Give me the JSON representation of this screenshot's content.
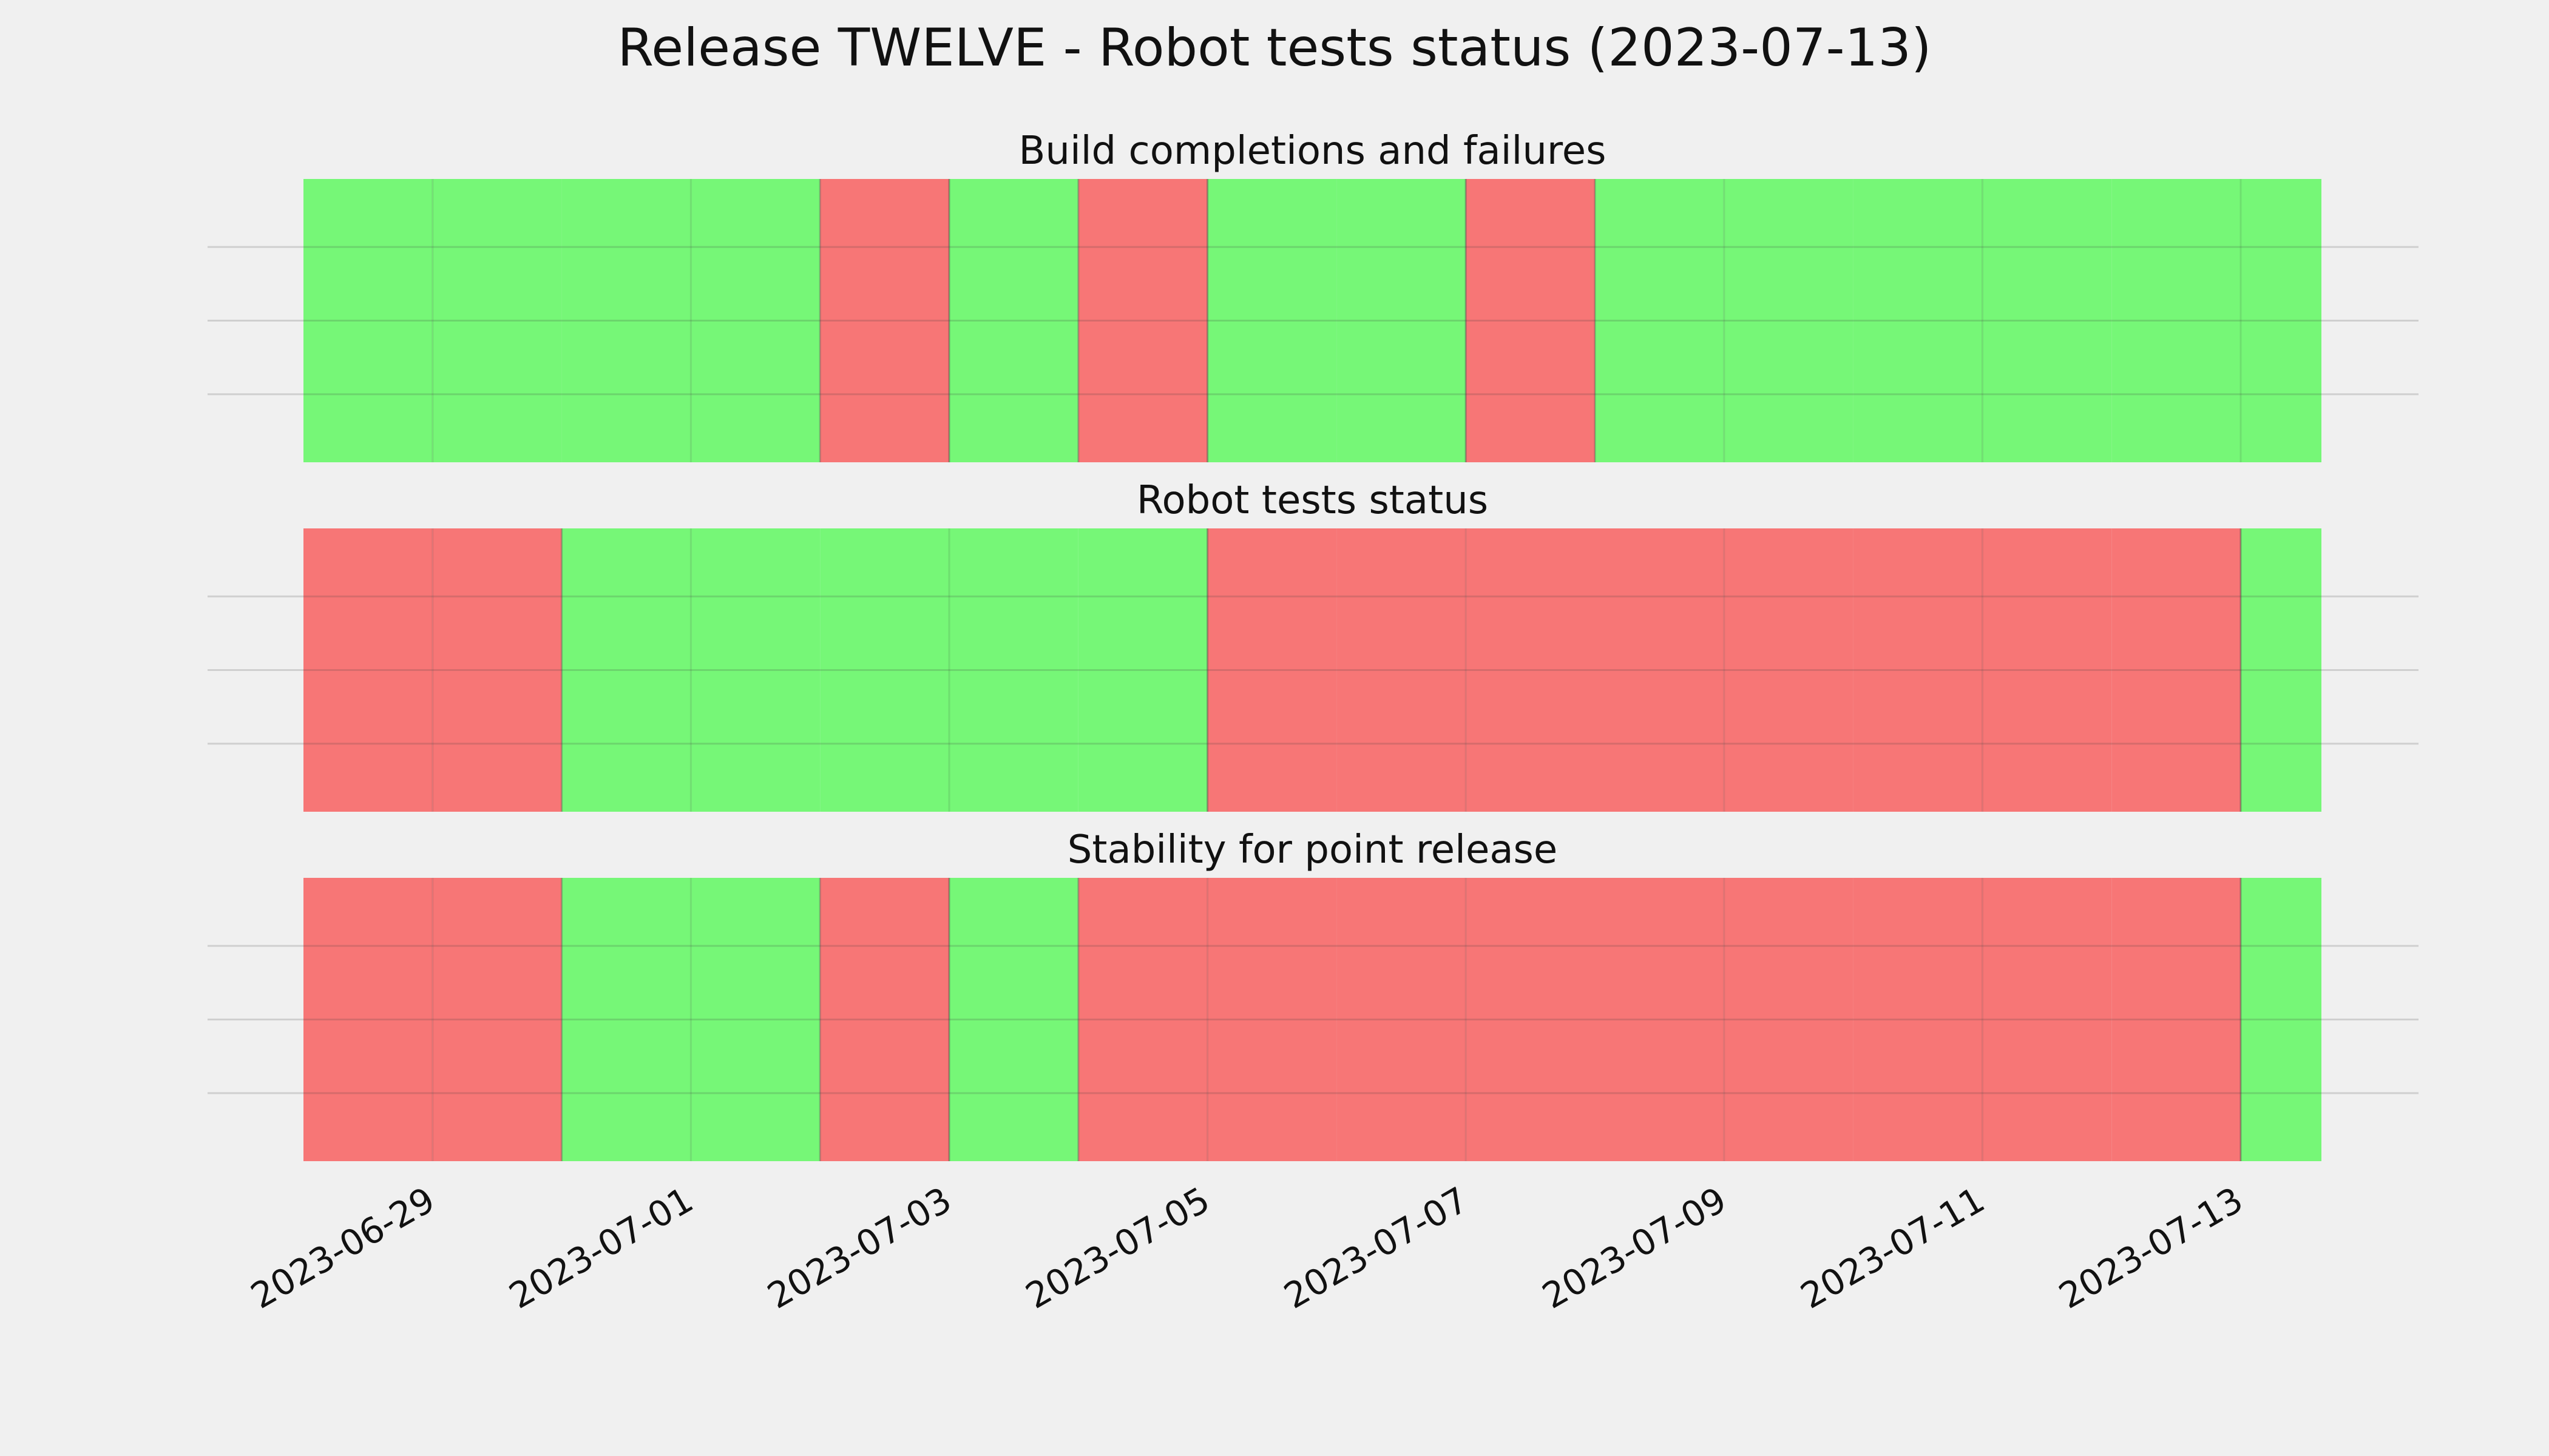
{
  "chart_data": {
    "type": "timeline",
    "title": "Release TWELVE - Robot tests status (2023-07-13)",
    "x_dates": [
      "2023-06-28",
      "2023-06-29",
      "2023-06-30",
      "2023-07-01",
      "2023-07-02",
      "2023-07-03",
      "2023-07-04",
      "2023-07-05",
      "2023-07-06",
      "2023-07-07",
      "2023-07-08",
      "2023-07-09",
      "2023-07-10",
      "2023-07-11",
      "2023-07-12",
      "2023-07-13"
    ],
    "xlim": [
      "2023-06-28",
      "2023-07-13T15:00"
    ],
    "x_ticks": [
      "2023-06-29",
      "2023-07-01",
      "2023-07-03",
      "2023-07-05",
      "2023-07-07",
      "2023-07-09",
      "2023-07-11",
      "2023-07-13"
    ],
    "grid": true,
    "colors": {
      "background": "#f0f0f0",
      "pass": "#76f777",
      "fail": "#f77676",
      "grid": "#c8c8c8"
    },
    "panels": [
      {
        "title": "Build completions and failures",
        "status": [
          "pass",
          "pass",
          "pass",
          "pass",
          "fail",
          "pass",
          "fail",
          "pass",
          "pass",
          "fail",
          "pass",
          "pass",
          "pass",
          "pass",
          "pass",
          "pass"
        ]
      },
      {
        "title": "Robot tests status",
        "status": [
          "fail",
          "fail",
          "pass",
          "pass",
          "pass",
          "pass",
          "pass",
          "fail",
          "fail",
          "fail",
          "fail",
          "fail",
          "fail",
          "fail",
          "fail",
          "pass"
        ]
      },
      {
        "title": "Stability for point release",
        "status": [
          "fail",
          "fail",
          "pass",
          "pass",
          "fail",
          "pass",
          "fail",
          "fail",
          "fail",
          "fail",
          "fail",
          "fail",
          "fail",
          "fail",
          "fail",
          "pass"
        ]
      }
    ]
  }
}
